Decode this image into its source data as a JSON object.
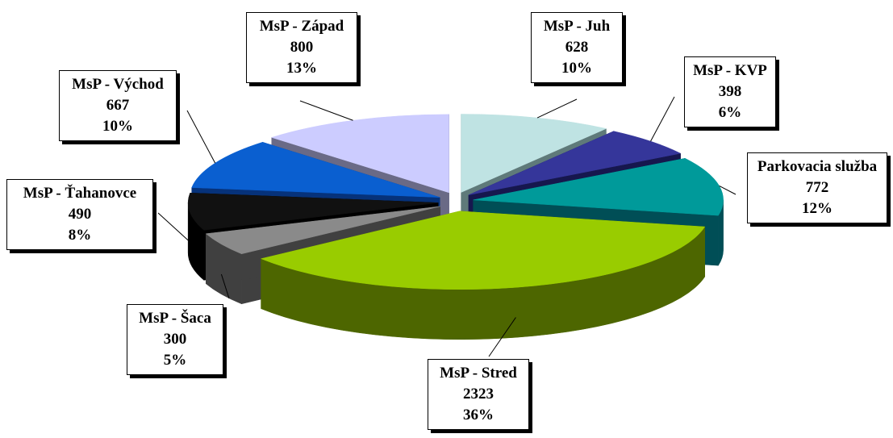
{
  "chart_data": {
    "type": "pie",
    "style": "3d-exploded",
    "slices": [
      {
        "name": "MsP - Juh",
        "value": 628,
        "percent": "10%",
        "top_color": "#bfe3e3",
        "side_color": "#5f7a7a"
      },
      {
        "name": "MsP - KVP",
        "value": 398,
        "percent": "6%",
        "top_color": "#35369a",
        "side_color": "#16174e"
      },
      {
        "name": "Parkovacia služba",
        "value": 772,
        "percent": "12%",
        "top_color": "#009a9a",
        "side_color": "#004e56"
      },
      {
        "name": "MsP - Stred",
        "value": 2323,
        "percent": "36%",
        "top_color": "#99cc00",
        "side_color": "#4d6600"
      },
      {
        "name": "MsP - Šaca",
        "value": 300,
        "percent": "5%",
        "top_color": "#8a8a8a",
        "side_color": "#404040"
      },
      {
        "name": "MsP - Ťahanovce",
        "value": 490,
        "percent": "8%",
        "top_color": "#111111",
        "side_color": "#000000"
      },
      {
        "name": "MsP - Východ",
        "value": 667,
        "percent": "10%",
        "top_color": "#0a5fd0",
        "side_color": "#06327a"
      },
      {
        "name": "MsP - Západ",
        "value": 800,
        "percent": "13%",
        "top_color": "#ccccff",
        "side_color": "#6a6a86"
      }
    ]
  }
}
